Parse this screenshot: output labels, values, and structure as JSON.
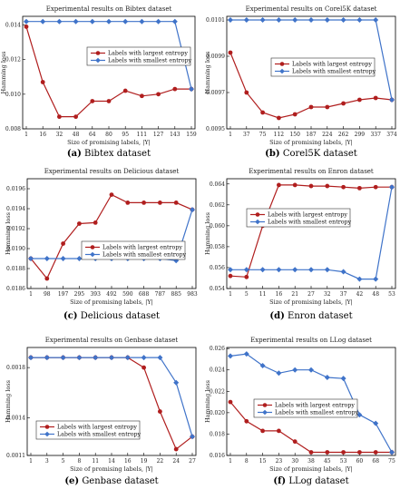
{
  "colors": {
    "largest": "#b01e1e",
    "smallest": "#3f73c9"
  },
  "chart_data": [
    {
      "type": "line",
      "title": "Experimental results on Bibtex dataset",
      "xlabel": "Size of promising labels, |Y|",
      "ylabel": "Hamming loss",
      "x": [
        "1",
        "16",
        "32",
        "48",
        "64",
        "80",
        "95",
        "111",
        "127",
        "143",
        "159"
      ],
      "ylim": [
        0.008,
        0.0145
      ],
      "yticks": [
        "0.008",
        "0.010",
        "0.012",
        "0.014"
      ],
      "legend_position": "center",
      "caption": {
        "letter": "(a)",
        "text": "Bibtex dataset"
      },
      "series": [
        {
          "name": "Labels with largest entropy",
          "values": [
            0.0139,
            0.0107,
            0.0087,
            0.0087,
            0.0096,
            0.0096,
            0.0102,
            0.0099,
            0.01,
            0.0103,
            0.0103
          ]
        },
        {
          "name": "Labels with smallest entropy",
          "values": [
            0.0142,
            0.0142,
            0.0142,
            0.0142,
            0.0142,
            0.0142,
            0.0142,
            0.0142,
            0.0142,
            0.0142,
            0.0103
          ]
        }
      ]
    },
    {
      "type": "line",
      "title": "Experimental results on Corel5K dataset",
      "xlabel": "Size of promising labels, |Y|",
      "ylabel": "Hamming loss",
      "x": [
        "1",
        "37",
        "75",
        "112",
        "150",
        "187",
        "224",
        "262",
        "299",
        "337",
        "374"
      ],
      "ylim": [
        0.0095,
        0.01012
      ],
      "yticks": [
        "0.0095",
        "0.0097",
        "0.0099",
        "0.0101"
      ],
      "legend_position": "top-right",
      "caption": {
        "letter": "(b)",
        "text": "Corel5K dataset"
      },
      "series": [
        {
          "name": "Labels with largest entropy",
          "values": [
            0.00992,
            0.0097,
            0.00959,
            0.00956,
            0.00958,
            0.00962,
            0.00962,
            0.00964,
            0.00966,
            0.00967,
            0.00966
          ]
        },
        {
          "name": "Labels with smallest entropy",
          "values": [
            0.0101,
            0.0101,
            0.0101,
            0.0101,
            0.0101,
            0.0101,
            0.0101,
            0.0101,
            0.0101,
            0.0101,
            0.00966
          ]
        }
      ]
    },
    {
      "type": "line",
      "title": "Experimental results on Delicious dataset",
      "xlabel": "Size of promising labels, |Y|",
      "ylabel": "Hamming loss",
      "x": [
        "1",
        "98",
        "197",
        "295",
        "393",
        "492",
        "590",
        "688",
        "787",
        "885",
        "983"
      ],
      "ylim": [
        0.0186,
        0.0197
      ],
      "yticks": [
        "0.0186",
        "0.0188",
        "0.0190",
        "0.0192",
        "0.0194",
        "0.0196"
      ],
      "legend_position": "bottom-right",
      "caption": {
        "letter": "(c)",
        "text": "Delicious dataset"
      },
      "series": [
        {
          "name": "Labels with largest entropy",
          "values": [
            0.0189,
            0.0187,
            0.01905,
            0.01925,
            0.01926,
            0.01954,
            0.01946,
            0.01946,
            0.01946,
            0.01946,
            0.01939
          ]
        },
        {
          "name": "Labels with smallest entropy",
          "values": [
            0.0189,
            0.0189,
            0.0189,
            0.0189,
            0.0189,
            0.0189,
            0.0189,
            0.0189,
            0.0189,
            0.01888,
            0.01939
          ]
        }
      ]
    },
    {
      "type": "line",
      "title": "Experimental results on Enron dataset",
      "xlabel": "Size of promising labels, |Y|",
      "ylabel": "Hamming loss",
      "x": [
        "1",
        "5",
        "11",
        "16",
        "21",
        "27",
        "32",
        "37",
        "42",
        "48",
        "53"
      ],
      "ylim": [
        0.054,
        0.0645
      ],
      "yticks": [
        "0.054",
        "0.056",
        "0.058",
        "0.060",
        "0.062",
        "0.064"
      ],
      "legend_position": "center",
      "caption": {
        "letter": "(d)",
        "text": "Enron dataset"
      },
      "series": [
        {
          "name": "Labels with largest entropy",
          "values": [
            0.0552,
            0.0551,
            0.06,
            0.0639,
            0.0639,
            0.0638,
            0.0638,
            0.0637,
            0.0636,
            0.0637,
            0.0637
          ]
        },
        {
          "name": "Labels with smallest entropy",
          "values": [
            0.0558,
            0.0558,
            0.0558,
            0.0558,
            0.0558,
            0.0558,
            0.0558,
            0.0556,
            0.0549,
            0.0549,
            0.0637
          ]
        }
      ]
    },
    {
      "type": "line",
      "title": "Experimental results on Genbase dataset",
      "xlabel": "Size of promising labels, |Y|",
      "ylabel": "Hamming loss",
      "x": [
        "1",
        "3",
        "5",
        "8",
        "11",
        "14",
        "16",
        "19",
        "22",
        "24",
        "27"
      ],
      "ylim": [
        0.0011,
        0.00196
      ],
      "yticks": [
        "0.0011",
        "0.0014",
        "0.0018"
      ],
      "legend_position": "bottom-left",
      "caption": {
        "letter": "(e)",
        "text": "Genbase dataset"
      },
      "series": [
        {
          "name": "Labels with largest entropy",
          "values": [
            0.00188,
            0.00188,
            0.00188,
            0.00188,
            0.00188,
            0.00188,
            0.00188,
            0.0018,
            0.00145,
            0.00115,
            0.00125
          ]
        },
        {
          "name": "Labels with smallest entropy",
          "values": [
            0.00188,
            0.00188,
            0.00188,
            0.00188,
            0.00188,
            0.00188,
            0.00188,
            0.00188,
            0.00188,
            0.00168,
            0.00125
          ]
        }
      ]
    },
    {
      "type": "line",
      "title": "Experimental results on LLog dataset",
      "xlabel": "Size of promising labels, |Y|",
      "ylabel": "Hamming loss",
      "x": [
        "1",
        "8",
        "15",
        "23",
        "30",
        "38",
        "45",
        "53",
        "60",
        "68",
        "75"
      ],
      "ylim": [
        0.016,
        0.0261
      ],
      "yticks": [
        "0.016",
        "0.018",
        "0.020",
        "0.022",
        "0.024",
        "0.026"
      ],
      "legend_position": "center",
      "caption": {
        "letter": "(f)",
        "text": "LLog dataset"
      },
      "series": [
        {
          "name": "Labels with largest entropy",
          "values": [
            0.021,
            0.0192,
            0.0183,
            0.0183,
            0.0173,
            0.0163,
            0.0163,
            0.0163,
            0.0163,
            0.0163,
            0.0163
          ]
        },
        {
          "name": "Labels with smallest entropy",
          "values": [
            0.0253,
            0.0255,
            0.0244,
            0.0237,
            0.024,
            0.024,
            0.0233,
            0.0232,
            0.0198,
            0.019,
            0.0163
          ]
        }
      ]
    }
  ]
}
